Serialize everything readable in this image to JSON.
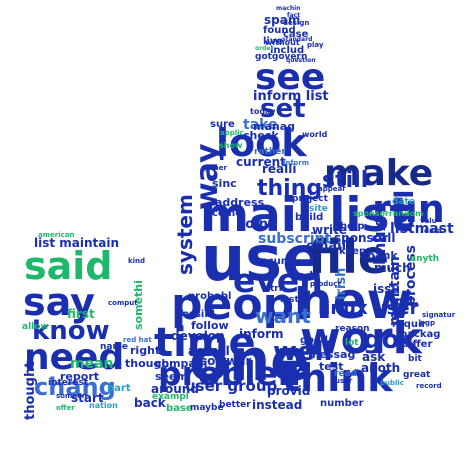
{
  "word_cloud": {
    "shape": "thumbs-up",
    "colors": [
      "#1a2fb0",
      "#3a6fd0",
      "#1fb86a",
      "#2a9ec8",
      "#152a8a",
      "#23c089"
    ],
    "words": {
      "use": "use",
      "file": "file",
      "maillist": "mail list",
      "peopl": "peopl",
      "new": "new",
      "one": "one",
      "time": "time",
      "work": "work",
      "think": "think",
      "make": "make",
      "said": "said",
      "say": "say",
      "know": "know",
      "need": "need",
      "even": "even",
      "look": "look",
      "see": "see",
      "set": "set",
      "run": "run",
      "problem": "problem",
      "well": "well",
      "go": "go",
      "way": "way",
      "thing": "thing",
      "still": "still",
      "url": "url",
      "system": "system",
      "want": "want",
      "linux": "linux",
      "linuxuser": "linux user",
      "usergroup": "user group",
      "subscript": "subscript",
      "irish": "irish",
      "develop": "develop",
      "listmaintain": "list maintain",
      "chang": "chang",
      "first": "first",
      "point": "point",
      "process": "process",
      "maintain": "maintain",
      "thought": "thought",
      "email": "email",
      "sponsor": "sponsor",
      "current": "current",
      "inform": "inform",
      "informlist": "inform list",
      "take": "take",
      "manag": "manag",
      "check": "check",
      "sure": "sure",
      "stuff": "stuff",
      "anoth": "anoth",
      "ask": "ask",
      "start": "start",
      "number": "number",
      "instead": "instead",
      "provid": "provid",
      "better": "better",
      "mean": "mean",
      "someth": "somethi",
      "report": "report",
      "interest": "interest",
      "name": "name",
      "allow": "allow",
      "probabl": "probabl",
      "follow": "follow",
      "actual": "actual",
      "softwar": "softwar",
      "compani": "compani",
      "seem": "seem",
      "right": "right",
      "though": "though",
      "good": "good",
      "code": "code",
      "find": "find",
      "messag": "messag",
      "group": "group",
      "without": "without",
      "spam": "spam",
      "found": "found",
      "live": "live",
      "case": "case",
      "includ": "includ",
      "gotgovern": "gotgovern",
      "machin": "machin",
      "design": "design",
      "build": "build",
      "realli": "realli",
      "rather": "rather",
      "help": "help",
      "call": "call",
      "thank": "thank",
      "keep": "keep",
      "date": "date",
      "much": "much",
      "issu": "issu",
      "secur": "secur",
      "address": "address",
      "come": "come",
      "sinc": "sinc",
      "possibl": "possibl",
      "write": "write",
      "around": "around",
      "back": "back",
      "tri": "tri",
      "last": "last",
      "test": "test",
      "bit": "bit",
      "packag": "packag",
      "requir": "requir",
      "differ": "differ",
      "lot": "lot",
      "site": "site",
      "project": "project",
      "inform2": "inform",
      "reason": "reason",
      "base": "base",
      "maybe": "maybe",
      "part": "part",
      "nation": "nation",
      "offer": "offer",
      "american": "american",
      "someon": "someon",
      "public": "public",
      "anyth": "anyth",
      "record": "record",
      "red hat": "red hat",
      "exampl": "exampl",
      "user": "user",
      "computer": "comput",
      "appear": "appear",
      "product": "product",
      "play": "play",
      "standard": "standard",
      "today": "today",
      "applic": "applic",
      "order": "order",
      "fact": "fact",
      "question": "question",
      "gener": "gener",
      "show": "show",
      "read": "read",
      "kind": "kind",
      "great": "great",
      "listmast": "listmast",
      "randomsponsor": "sponsorrandom",
      "valu": "valu",
      "data": "data",
      "signatur": "signatur",
      "pgp": "pgp",
      "world": "world"
    }
  }
}
